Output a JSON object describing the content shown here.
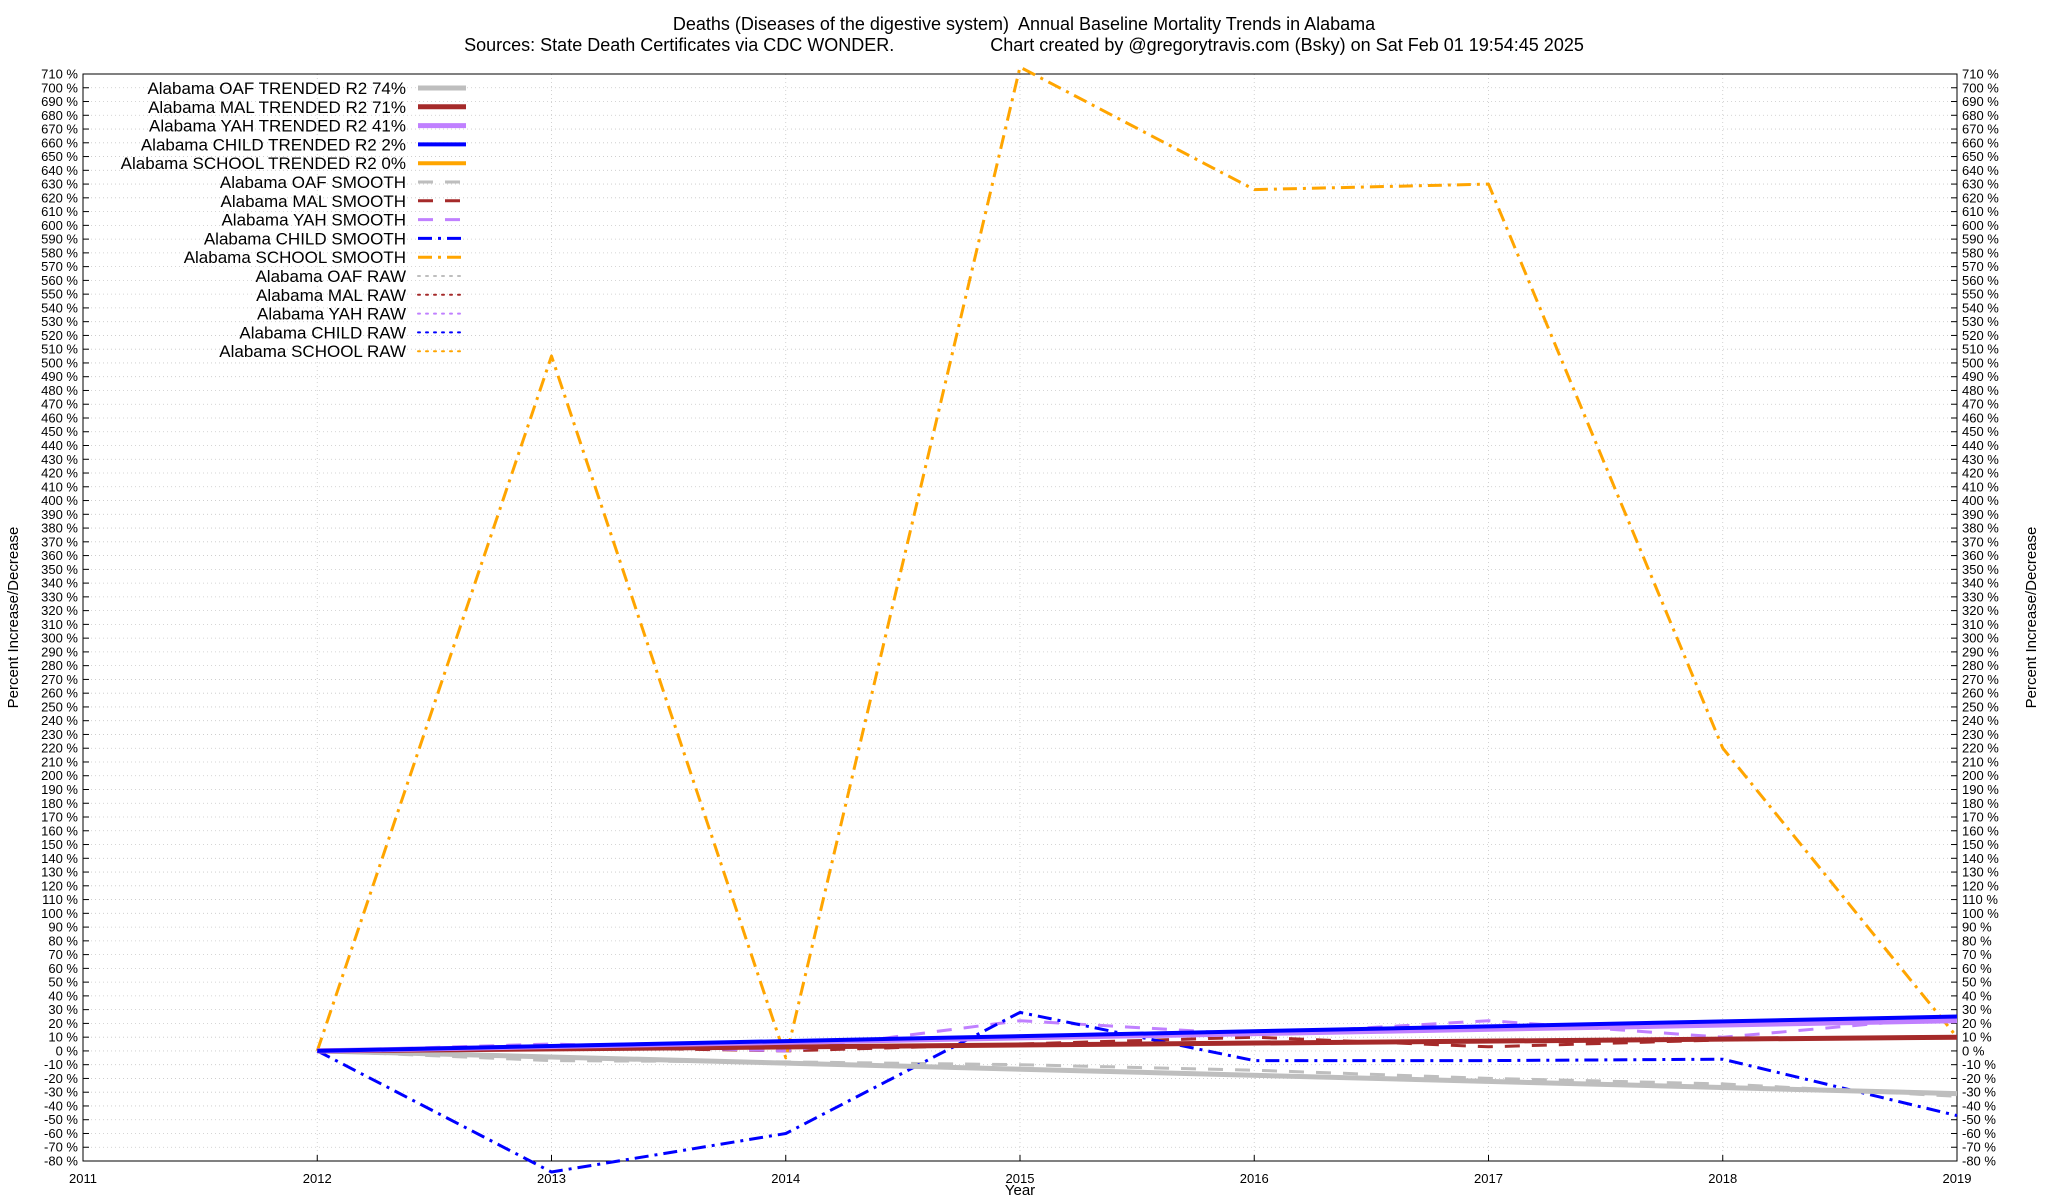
{
  "header": {
    "title": "Deaths (Diseases of the digestive system)  Annual Baseline Mortality Trends in Alabama",
    "sources": "Sources: State Death Certificates via CDC WONDER.",
    "credit": "Chart created by @gregorytravis.com (Bsky) on Sat Feb 01 19:54:45 2025"
  },
  "chart_data": {
    "type": "line",
    "xlabel": "Year",
    "ylabel": "Percent Increase/Decrease",
    "y2label": "Percent Increase/Decrease",
    "xlim": [
      2011,
      2019
    ],
    "ylim": [
      -80,
      710
    ],
    "xticks": [
      2011,
      2012,
      2013,
      2014,
      2015,
      2016,
      2017,
      2018,
      2019
    ],
    "ytick_step": 10,
    "ytick_suffix": " %",
    "grid": true,
    "legend_position": "top-left",
    "series": [
      {
        "name": "Alabama OAF TRENDED R2  74%",
        "color": "#bebebe",
        "style": "solid",
        "width": 5,
        "x": [
          2012,
          2019
        ],
        "y": [
          0,
          -31
        ]
      },
      {
        "name": "Alabama MAL TRENDED R2  71%",
        "color": "#a52a2a",
        "style": "solid",
        "width": 5,
        "x": [
          2012,
          2019
        ],
        "y": [
          0,
          10
        ]
      },
      {
        "name": "Alabama YAH TRENDED R2  41%",
        "color": "#c080ff",
        "style": "solid",
        "width": 5,
        "x": [
          2012,
          2019
        ],
        "y": [
          0,
          22
        ]
      },
      {
        "name": "Alabama CHILD TRENDED R2   2%",
        "color": "#0000ff",
        "style": "solid",
        "width": 4,
        "x": [
          2012,
          2019
        ],
        "y": [
          0,
          25
        ]
      },
      {
        "name": "Alabama SCHOOL TRENDED R2   0%",
        "color": "#ffa500",
        "style": "solid",
        "width": 4,
        "x": [],
        "y": []
      },
      {
        "name": "Alabama OAF SMOOTH",
        "color": "#bebebe",
        "style": "dash",
        "width": 3,
        "x": [
          2012,
          2013,
          2014,
          2015,
          2016,
          2017,
          2018,
          2019
        ],
        "y": [
          0,
          -7,
          -8,
          -10,
          -14,
          -20,
          -24,
          -33
        ]
      },
      {
        "name": "Alabama MAL SMOOTH",
        "color": "#a52a2a",
        "style": "dash",
        "width": 3,
        "x": [
          2012,
          2013,
          2014,
          2015,
          2016,
          2017,
          2018,
          2019
        ],
        "y": [
          0,
          3,
          0,
          5,
          10,
          3,
          8,
          10
        ]
      },
      {
        "name": "Alabama YAH SMOOTH",
        "color": "#c080ff",
        "style": "dash",
        "width": 3,
        "x": [
          2012,
          2013,
          2014,
          2015,
          2016,
          2017,
          2018,
          2019
        ],
        "y": [
          0,
          5,
          0,
          22,
          12,
          22,
          10,
          25
        ]
      },
      {
        "name": "Alabama CHILD SMOOTH",
        "color": "#0000ff",
        "style": "dashdot",
        "width": 3,
        "x": [
          2012,
          2013,
          2014,
          2015,
          2016,
          2017,
          2018,
          2019
        ],
        "y": [
          0,
          -88,
          -60,
          28,
          -7,
          -7,
          -6,
          -47
        ]
      },
      {
        "name": "Alabama SCHOOL SMOOTH",
        "color": "#ffa500",
        "style": "dashdot",
        "width": 3,
        "x": [
          2012,
          2013,
          2014,
          2015,
          2016,
          2017,
          2018,
          2019
        ],
        "y": [
          0,
          505,
          -5,
          715,
          626,
          630,
          220,
          10
        ]
      },
      {
        "name": "Alabama OAF RAW",
        "color": "#bebebe",
        "style": "dot",
        "width": 2,
        "x": [],
        "y": []
      },
      {
        "name": "Alabama MAL RAW",
        "color": "#a52a2a",
        "style": "dot",
        "width": 2,
        "x": [],
        "y": []
      },
      {
        "name": "Alabama YAH RAW",
        "color": "#c080ff",
        "style": "dot",
        "width": 2,
        "x": [],
        "y": []
      },
      {
        "name": "Alabama CHILD RAW",
        "color": "#0000ff",
        "style": "dot",
        "width": 2,
        "x": [],
        "y": []
      },
      {
        "name": "Alabama SCHOOL RAW",
        "color": "#ffa500",
        "style": "dot",
        "width": 2,
        "x": [],
        "y": []
      }
    ]
  }
}
